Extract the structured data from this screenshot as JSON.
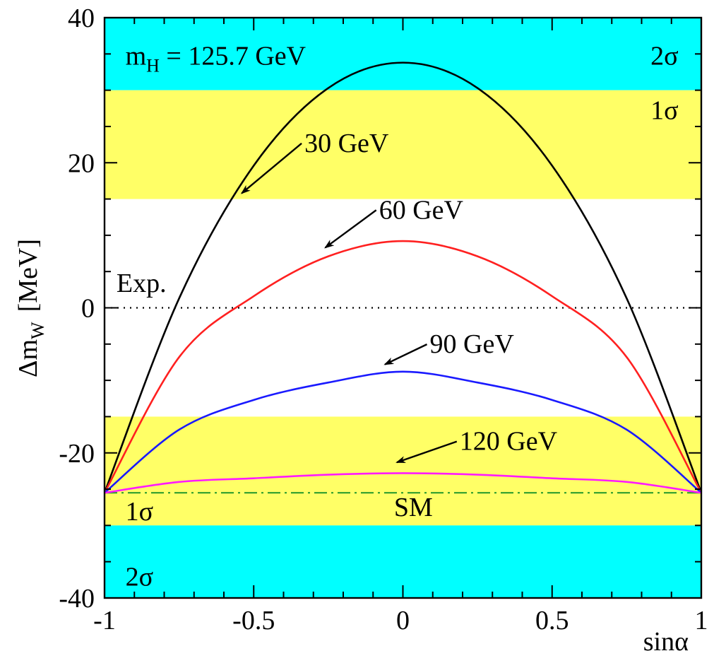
{
  "chart_data": {
    "type": "line",
    "xlabel": "sinα",
    "ylabel": {
      "main": "Δm",
      "sub": "W",
      "unit": "[MeV]"
    },
    "xlim": [
      -1,
      1
    ],
    "ylim": [
      -40,
      40
    ],
    "xticks": [
      -1,
      -0.5,
      0,
      0.5,
      1
    ],
    "xtick_labels": [
      "-1",
      "-0.5",
      "0",
      "0.5",
      "1"
    ],
    "yticks": [
      -40,
      -20,
      0,
      20,
      40
    ],
    "ytick_labels": [
      "-40",
      "-20",
      "0",
      "20",
      "40"
    ],
    "bands": [
      {
        "name": "2σ",
        "from": 30,
        "to": 40,
        "color": "#00ffff"
      },
      {
        "name": "1σ",
        "from": 15,
        "to": 30,
        "color": "#ffff66"
      },
      {
        "name": "1σ",
        "from": -30,
        "to": -15,
        "color": "#ffff66"
      },
      {
        "name": "2σ",
        "from": -40,
        "to": -30,
        "color": "#00ffff"
      }
    ],
    "band_labels": [
      {
        "text": "2σ",
        "x": 0.83,
        "y": 33.5
      },
      {
        "text": "1σ",
        "x": 0.83,
        "y": 26
      },
      {
        "text": "1σ",
        "x": -0.93,
        "y": -29.3
      },
      {
        "text": "2σ",
        "x": -0.93,
        "y": -38.3
      }
    ],
    "reference_lines": [
      {
        "name": "Exp.",
        "y": 0,
        "style": "dotted",
        "color": "#000000"
      },
      {
        "name": "SM",
        "y": -25.5,
        "style": "dashdot",
        "color": "#2e9e2e"
      }
    ],
    "series": [
      {
        "name": "30 GeV",
        "color": "#000000",
        "x": [
          -1,
          -0.75,
          -0.5,
          -0.25,
          0,
          0.25,
          0.5,
          0.75,
          1
        ],
        "values": [
          -25.5,
          1.3,
          19.6,
          30.3,
          33.8,
          30.3,
          19.6,
          1.3,
          -25.5
        ]
      },
      {
        "name": "60 GeV",
        "color": "#ff2020",
        "x": [
          -1,
          -0.75,
          -0.5,
          -0.25,
          0,
          0.25,
          0.5,
          0.75,
          1
        ],
        "values": [
          -25.5,
          -6.8,
          1.6,
          7.1,
          9.2,
          7.1,
          1.6,
          -6.8,
          -25.5
        ]
      },
      {
        "name": "90 GeV",
        "color": "#1a1aff",
        "x": [
          -1,
          -0.75,
          -0.5,
          -0.25,
          0,
          0.25,
          0.5,
          0.75,
          1
        ],
        "values": [
          -25.5,
          -16.8,
          -12.7,
          -10.3,
          -8.8,
          -10.3,
          -12.7,
          -16.8,
          -25.5
        ]
      },
      {
        "name": "120 GeV",
        "color": "#ff1aff",
        "x": [
          -1,
          -0.75,
          -0.5,
          -0.25,
          0,
          0.25,
          0.5,
          0.75,
          1
        ],
        "values": [
          -25.5,
          -24.0,
          -23.5,
          -23.0,
          -22.8,
          -23.0,
          -23.5,
          -24.0,
          -25.5
        ]
      }
    ],
    "annotations": [
      {
        "text": "m",
        "sub": "H",
        "suffix": " = 125.7 GeV",
        "x": -0.93,
        "y": 33.5
      },
      {
        "text": "30 GeV",
        "x": -0.33,
        "y": 21.5,
        "arrow_to": [
          -0.54,
          15.8
        ]
      },
      {
        "text": "60 GeV",
        "x": -0.08,
        "y": 12.3,
        "arrow_to": [
          -0.26,
          8.3
        ]
      },
      {
        "text": "90 GeV",
        "x": 0.09,
        "y": -6.2,
        "arrow_to": [
          -0.06,
          -7.8
        ]
      },
      {
        "text": "120 GeV",
        "x": 0.19,
        "y": -19.6,
        "arrow_to": [
          -0.02,
          -21.3
        ]
      },
      {
        "text": "Exp.",
        "x": -0.96,
        "y": 2.2
      },
      {
        "text": "SM",
        "x": -0.03,
        "y": -28.7
      }
    ]
  }
}
